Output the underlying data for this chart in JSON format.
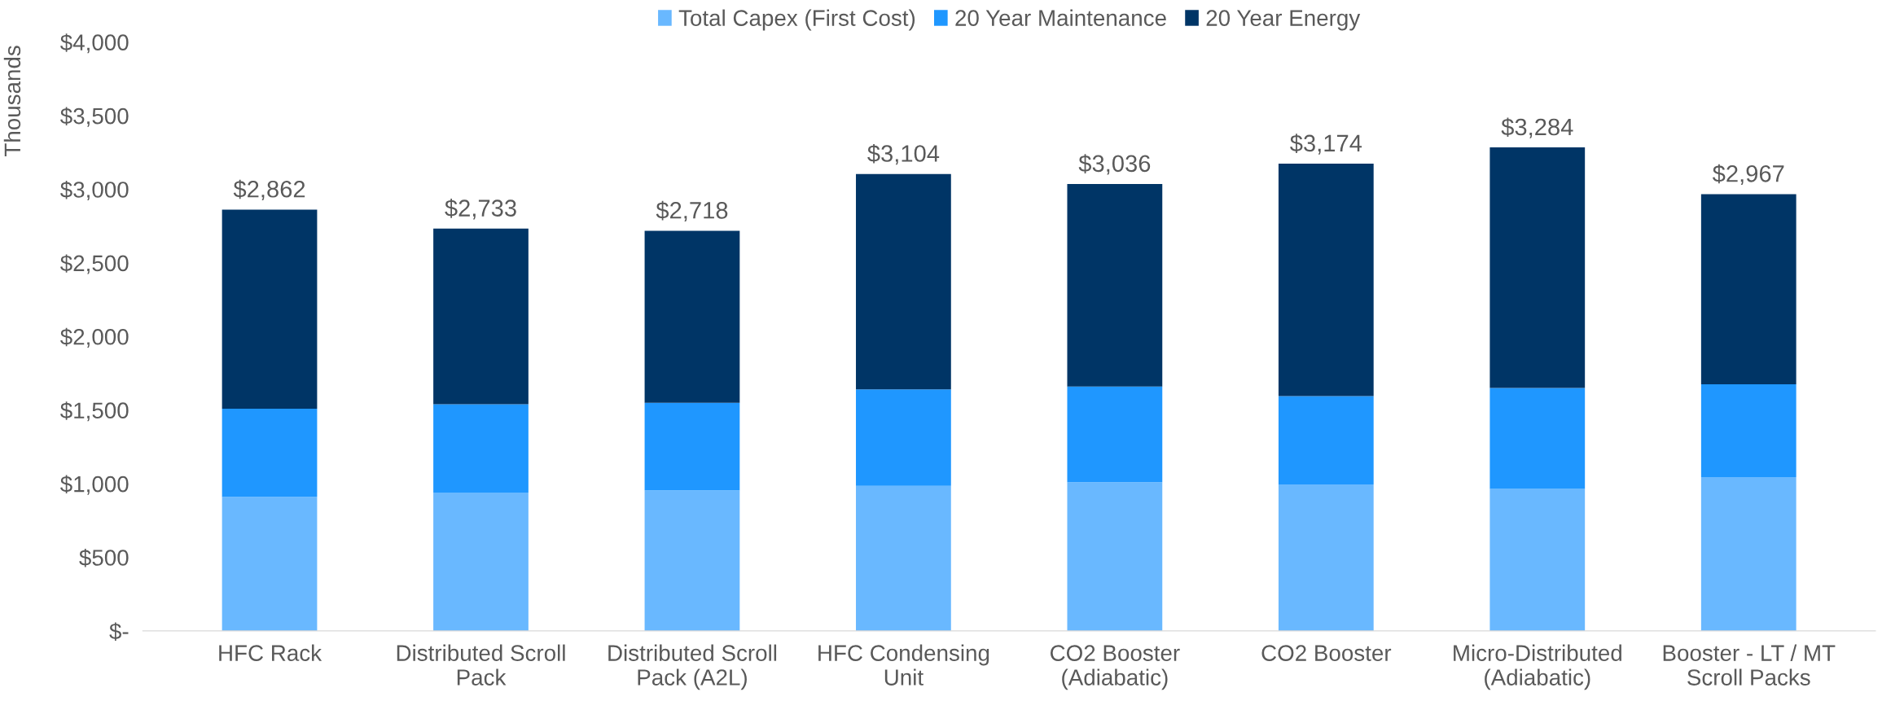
{
  "chart_data": {
    "type": "bar",
    "stacked": true,
    "ylabel": "Thousands",
    "categories": [
      "HFC Rack",
      "Distributed Scroll\nPack",
      "Distributed Scroll\nPack (A2L)",
      "HFC Condensing\nUnit",
      "CO2 Booster\n(Adiabatic)",
      "CO2 Booster",
      "Micro-Distributed\n(Adiabatic)",
      "Booster - LT / MT\nScroll Packs"
    ],
    "series": [
      {
        "name": "Total Capex (First Cost)",
        "color": "#69b8ff",
        "values": [
          911,
          940,
          955,
          985,
          1010,
          995,
          965,
          1045
        ]
      },
      {
        "name": "20 Year Maintenance",
        "color": "#1f97ff",
        "values": [
          599,
          600,
          595,
          655,
          650,
          600,
          685,
          630
        ]
      },
      {
        "name": "20 Year Energy",
        "color": "#003566",
        "values": [
          1352,
          1193,
          1168,
          1464,
          1376,
          1579,
          1634,
          1292
        ]
      }
    ],
    "totals": [
      "$2,862",
      "$2,733",
      "$2,718",
      "$3,104",
      "$3,036",
      "$3,174",
      "$3,284",
      "$2,967"
    ],
    "ylim": [
      0,
      4000
    ],
    "yticks": [
      {
        "value": 0,
        "label": "$-"
      },
      {
        "value": 500,
        "label": "$500"
      },
      {
        "value": 1000,
        "label": "$1,000"
      },
      {
        "value": 1500,
        "label": "$1,500"
      },
      {
        "value": 2000,
        "label": "$2,000"
      },
      {
        "value": 2500,
        "label": "$2,500"
      },
      {
        "value": 3000,
        "label": "$3,000"
      },
      {
        "value": 3500,
        "label": "$3,500"
      },
      {
        "value": 4000,
        "label": "$4,000"
      }
    ],
    "legend": "top",
    "grid": false
  }
}
